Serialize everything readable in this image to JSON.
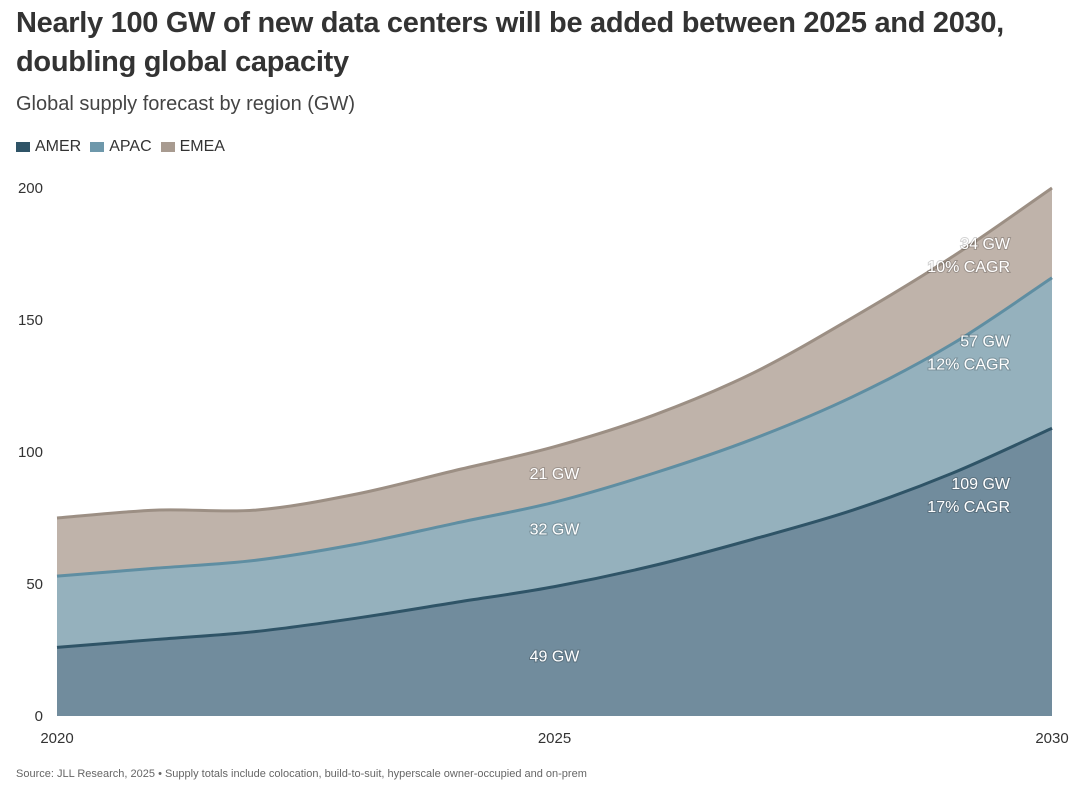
{
  "title": "Nearly 100 GW of new data centers will be added between 2025 and 2030, doubling global capacity",
  "subtitle": "Global supply forecast by region (GW)",
  "footer": "Source: JLL Research, 2025 • Supply totals include colocation, build-to-suit, hyperscale owner-occupied and on-prem",
  "colors": {
    "AMER_fill": "#718c9d",
    "AMER_line": "#2f5467",
    "APAC_fill": "#95b1bd",
    "APAC_line": "#5f8ea2",
    "EMEA_fill": "#bfb3aa",
    "EMEA_line": "#9c8f84"
  },
  "chart_data": {
    "type": "area",
    "stacked": true,
    "title": "Nearly 100 GW of new data centers will be added between 2025 and 2030, doubling global capacity",
    "subtitle": "Global supply forecast by region (GW)",
    "x": [
      2020,
      2021,
      2022,
      2023,
      2024,
      2025,
      2026,
      2027,
      2028,
      2029,
      2030
    ],
    "x_ticks": [
      "2020",
      "2025",
      "2030"
    ],
    "y_ticks": [
      "0",
      "50",
      "100",
      "150",
      "200"
    ],
    "ylim": [
      0,
      200
    ],
    "legend_position": "top-left",
    "grid": false,
    "series": [
      {
        "name": "AMER",
        "values": [
          26,
          29,
          32,
          37,
          43,
          49,
          57,
          67,
          78,
          92,
          109
        ]
      },
      {
        "name": "APAC",
        "values": [
          27,
          27,
          27,
          28,
          30,
          32,
          35,
          38,
          43,
          49,
          57
        ]
      },
      {
        "name": "EMEA",
        "values": [
          22,
          22,
          19,
          19,
          20,
          21,
          22,
          25,
          30,
          33,
          34
        ]
      }
    ],
    "annotations": [
      {
        "text": "49 GW",
        "x": 2025,
        "y": 23
      },
      {
        "text": "32 GW",
        "x": 2025,
        "y": 71
      },
      {
        "text": "21 GW",
        "x": 2025,
        "y": 92
      },
      {
        "text": "109 GW",
        "x": 2029.3,
        "y": 84,
        "anchor": "end",
        "lines": [
          "109 GW",
          "17% CAGR"
        ]
      },
      {
        "text": "57 GW",
        "x": 2029.3,
        "y": 138,
        "anchor": "end",
        "lines": [
          "57 GW",
          "12% CAGR"
        ]
      },
      {
        "text": "34 GW",
        "x": 2029.3,
        "y": 175,
        "anchor": "end",
        "lines": [
          "34 GW",
          "10% CAGR"
        ]
      }
    ]
  }
}
